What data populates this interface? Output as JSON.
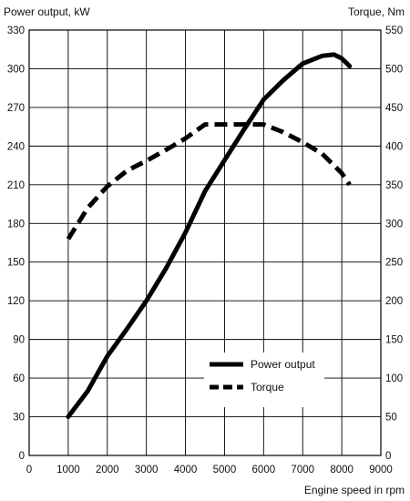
{
  "chart_data": {
    "type": "line",
    "xlabel": "Engine speed in rpm",
    "ylabel_left": "Power output, kW",
    "ylabel_right": "Torque, Nm",
    "xlim": [
      0,
      9000
    ],
    "ylim_left": [
      0,
      330
    ],
    "ylim_right": [
      0,
      550
    ],
    "xticks": [
      0,
      1000,
      2000,
      3000,
      4000,
      5000,
      6000,
      7000,
      8000,
      9000
    ],
    "yticks_left": [
      0,
      30,
      60,
      90,
      120,
      150,
      180,
      210,
      240,
      270,
      300,
      330
    ],
    "yticks_right": [
      0,
      50,
      100,
      150,
      200,
      250,
      300,
      350,
      400,
      450,
      500,
      550
    ],
    "grid": true,
    "legend_position": "bottom-right",
    "colors": {
      "line": "#000000",
      "grid": "#000000"
    },
    "series": [
      {
        "name": "Power output",
        "axis": "left",
        "style": "solid",
        "x": [
          1000,
          1500,
          2000,
          2500,
          3000,
          3500,
          4000,
          4500,
          5000,
          5500,
          6000,
          6500,
          7000,
          7500,
          7800,
          8000,
          8200
        ],
        "y": [
          30,
          50,
          77,
          98,
          120,
          145,
          173,
          205,
          229,
          253,
          276,
          291,
          304,
          310,
          311,
          308,
          302
        ]
      },
      {
        "name": "Torque",
        "axis": "right",
        "style": "dashed",
        "x": [
          1000,
          1500,
          2000,
          2500,
          3000,
          3500,
          4000,
          4500,
          5000,
          5500,
          6000,
          6500,
          7000,
          7500,
          8000,
          8200
        ],
        "y": [
          280,
          320,
          348,
          368,
          381,
          395,
          410,
          428,
          428,
          428,
          428,
          418,
          405,
          390,
          365,
          350
        ]
      }
    ]
  }
}
